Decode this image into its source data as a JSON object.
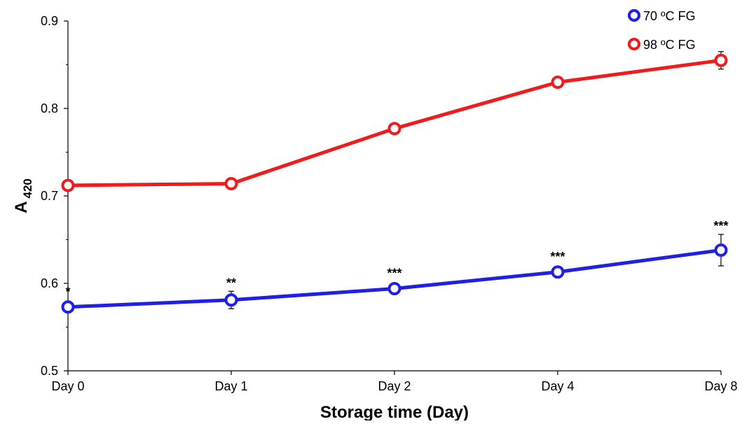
{
  "chart_data": {
    "type": "line",
    "categories": [
      "Day 0",
      "Day 1",
      "Day 2",
      "Day 4",
      "Day 8"
    ],
    "ylabel_main": "A",
    "ylabel_sub": "420",
    "xlabel": "Storage time (Day)",
    "ylim": [
      0.5,
      0.9
    ],
    "yticks": [
      "0.5",
      "0.6",
      "0.7",
      "0.8",
      "0.9"
    ],
    "grid": false,
    "legend_position": "top-right",
    "series": [
      {
        "name": "70 ºC FG",
        "color": "#1f1fe6",
        "values": [
          0.573,
          0.581,
          0.594,
          0.613,
          0.638
        ],
        "errors": [
          0.0,
          0.01,
          0.0,
          0.0,
          0.018
        ],
        "annotations": [
          "*",
          "**",
          "***",
          "***",
          "***"
        ]
      },
      {
        "name": "98 ºC FG",
        "color": "#ee1c1c",
        "values": [
          0.712,
          0.714,
          0.777,
          0.83,
          0.855
        ],
        "errors": [
          0.0,
          0.0,
          0.0,
          0.0,
          0.01
        ]
      }
    ]
  }
}
